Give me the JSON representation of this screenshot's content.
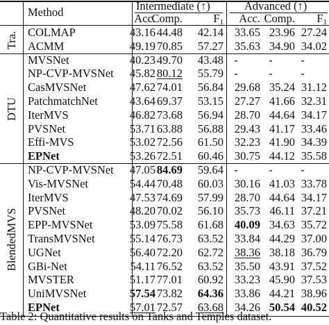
{
  "header": {
    "method_label": "Method",
    "intermediate_label": "Intermediate (↑)",
    "advanced_label": "Advanced (↑)",
    "columns": [
      "Acc.",
      "Comp.",
      "F",
      "Acc.",
      "Comp.",
      "F"
    ],
    "f1_subscript": "1"
  },
  "groups": [
    {
      "label": "Tra.",
      "rows": [
        {
          "method": "COLMAP",
          "values": [
            "43.16",
            "44.48",
            "42.14",
            "33.65",
            "23.96",
            "27.24"
          ],
          "bold": [],
          "underline": []
        },
        {
          "method": "ACMM",
          "values": [
            "49.19",
            "70.85",
            "57.27",
            "35.63",
            "34.90",
            "34.02"
          ],
          "bold": [],
          "underline": []
        }
      ]
    },
    {
      "label": "DTU",
      "rows": [
        {
          "method": "MVSNet",
          "values": [
            "40.23",
            "49.70",
            "43.48",
            "-",
            "-",
            "-"
          ],
          "bold": [],
          "underline": []
        },
        {
          "method": "NP-CVP-MVSNet",
          "values": [
            "45.82",
            "80.12",
            "55.79",
            "-",
            "-",
            "-"
          ],
          "bold": [],
          "underline": [
            1
          ]
        },
        {
          "method": "CasMVSNet",
          "values": [
            "47.62",
            "74.01",
            "56.84",
            "29.68",
            "35.24",
            "31.12"
          ],
          "bold": [],
          "underline": []
        },
        {
          "method": "PatchmatchNet",
          "values": [
            "43.64",
            "69.37",
            "53.15",
            "27.27",
            "41.66",
            "32.31"
          ],
          "bold": [],
          "underline": []
        },
        {
          "method": "IterMVS",
          "values": [
            "46.82",
            "73.68",
            "56.94",
            "28.70",
            "44.64",
            "34.17"
          ],
          "bold": [],
          "underline": []
        },
        {
          "method": "PVSNet",
          "values": [
            "53.71",
            "63.88",
            "56.88",
            "29.43",
            "41.17",
            "33.46"
          ],
          "bold": [],
          "underline": []
        },
        {
          "method": "Effi-MVS",
          "values": [
            "53.02",
            "72.56",
            "61.50",
            "32.23",
            "41.90",
            "34.39"
          ],
          "bold": [],
          "underline": []
        },
        {
          "method": "EPNet",
          "values": [
            "53.26",
            "72.51",
            "60.46",
            "30.75",
            "44.12",
            "35.58"
          ],
          "bold": [],
          "underline": [],
          "method_bold": true
        }
      ]
    },
    {
      "label": "BlendedMVS",
      "rows": [
        {
          "method": "NP-CVP-MVSNet",
          "values": [
            "47.05",
            "84.69",
            "59.64",
            "-",
            "-",
            "-"
          ],
          "bold": [
            1
          ],
          "underline": []
        },
        {
          "method": "Vis-MVSNet",
          "values": [
            "54.44",
            "70.48",
            "60.03",
            "30.16",
            "41.03",
            "33.78"
          ],
          "bold": [],
          "underline": []
        },
        {
          "method": "IterMVS",
          "values": [
            "47.53",
            "74.69",
            "57.99",
            "28.70",
            "44.64",
            "34.17"
          ],
          "bold": [],
          "underline": []
        },
        {
          "method": "PVSNet",
          "values": [
            "48.20",
            "70.02",
            "56.10",
            "35.73",
            "46.11",
            "37.21"
          ],
          "bold": [],
          "underline": []
        },
        {
          "method": "EPP-MVSNet",
          "values": [
            "53.09",
            "75.58",
            "61.68",
            "40.09",
            "34.63",
            "35.72"
          ],
          "bold": [
            3
          ],
          "underline": []
        },
        {
          "method": "TransMVSNet",
          "values": [
            "55.14",
            "76.73",
            "63.52",
            "33.84",
            "44.29",
            "37.00"
          ],
          "bold": [],
          "underline": []
        },
        {
          "method": "UGNet",
          "values": [
            "56.40",
            "72.20",
            "62.72",
            "38.36",
            "38.18",
            "36.79"
          ],
          "bold": [],
          "underline": [
            3
          ]
        },
        {
          "method": "GBi-Net",
          "values": [
            "54.11",
            "76.52",
            "63.52",
            "35.50",
            "43.91",
            "37.52"
          ],
          "bold": [],
          "underline": []
        },
        {
          "method": "MVSTER",
          "values": [
            "51.17",
            "77.01",
            "60.92",
            "33.23",
            "45.90",
            "37.53"
          ],
          "bold": [],
          "underline": []
        },
        {
          "method": "UniMVSNet",
          "values": [
            "57.54",
            "73.82",
            "64.36",
            "33.86",
            "44.21",
            "38.96"
          ],
          "bold": [
            0,
            2
          ],
          "underline": []
        },
        {
          "method": "EPNet",
          "values": [
            "57.01",
            "72.57",
            "63.68",
            "34.26",
            "50.54",
            "40.52"
          ],
          "bold": [
            4,
            5
          ],
          "underline": [
            0,
            2
          ],
          "method_bold": true
        }
      ]
    }
  ],
  "caption": "Table 2: Quantitative results on Tanks and Temples dataset."
}
